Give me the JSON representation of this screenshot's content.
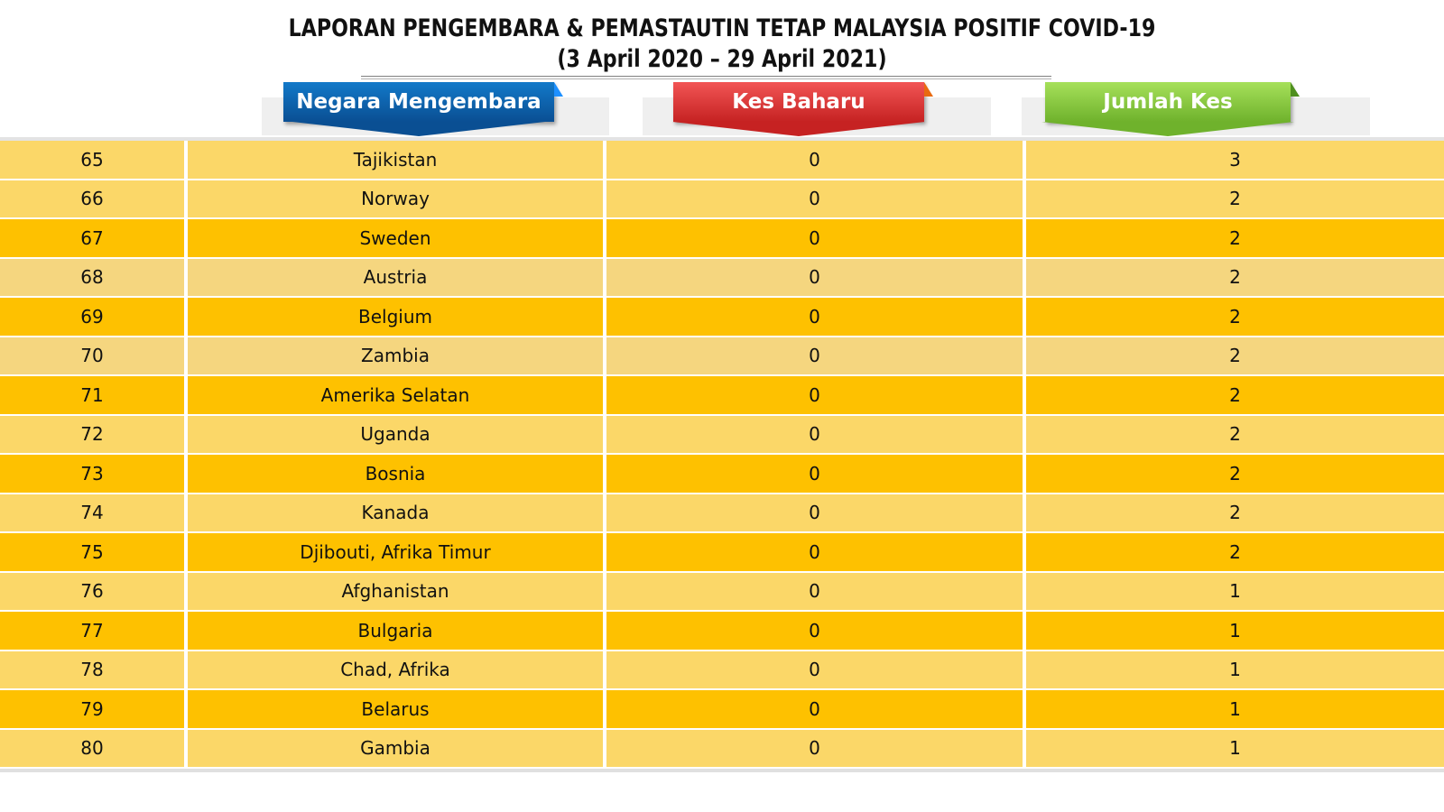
{
  "title": {
    "line1": "LAPORAN PENGEMBARA & PEMASTAUTIN TETAP MALAYSIA POSITIF COVID-19",
    "line2": "(3 April 2020 – 29 April 2021)"
  },
  "headers": {
    "negara": "Negara Mengembara",
    "kes_baharu": "Kes Baharu",
    "jumlah_kes": "Jumlah Kes"
  },
  "colors": {
    "row_light": "#fbd768",
    "row_dark": "#fec100",
    "row_pale": "#f5d67f",
    "header_blue": "#0a4f93",
    "header_red": "#c62222",
    "header_green": "#6fb22c"
  },
  "rows": [
    {
      "no": "65",
      "country": "Tajikistan",
      "new": "0",
      "total": "3",
      "shade": "light"
    },
    {
      "no": "66",
      "country": "Norway",
      "new": "0",
      "total": "2",
      "shade": "light"
    },
    {
      "no": "67",
      "country": "Sweden",
      "new": "0",
      "total": "2",
      "shade": "dark"
    },
    {
      "no": "68",
      "country": "Austria",
      "new": "0",
      "total": "2",
      "shade": "pale"
    },
    {
      "no": "69",
      "country": "Belgium",
      "new": "0",
      "total": "2",
      "shade": "dark"
    },
    {
      "no": "70",
      "country": "Zambia",
      "new": "0",
      "total": "2",
      "shade": "pale"
    },
    {
      "no": "71",
      "country": "Amerika Selatan",
      "new": "0",
      "total": "2",
      "shade": "dark"
    },
    {
      "no": "72",
      "country": "Uganda",
      "new": "0",
      "total": "2",
      "shade": "light"
    },
    {
      "no": "73",
      "country": "Bosnia",
      "new": "0",
      "total": "2",
      "shade": "dark"
    },
    {
      "no": "74",
      "country": "Kanada",
      "new": "0",
      "total": "2",
      "shade": "light"
    },
    {
      "no": "75",
      "country": "Djibouti, Afrika Timur",
      "new": "0",
      "total": "2",
      "shade": "dark"
    },
    {
      "no": "76",
      "country": "Afghanistan",
      "new": "0",
      "total": "1",
      "shade": "light"
    },
    {
      "no": "77",
      "country": "Bulgaria",
      "new": "0",
      "total": "1",
      "shade": "dark"
    },
    {
      "no": "78",
      "country": "Chad, Afrika",
      "new": "0",
      "total": "1",
      "shade": "light"
    },
    {
      "no": "79",
      "country": "Belarus",
      "new": "0",
      "total": "1",
      "shade": "dark"
    },
    {
      "no": "80",
      "country": "Gambia",
      "new": "0",
      "total": "1",
      "shade": "light"
    }
  ]
}
